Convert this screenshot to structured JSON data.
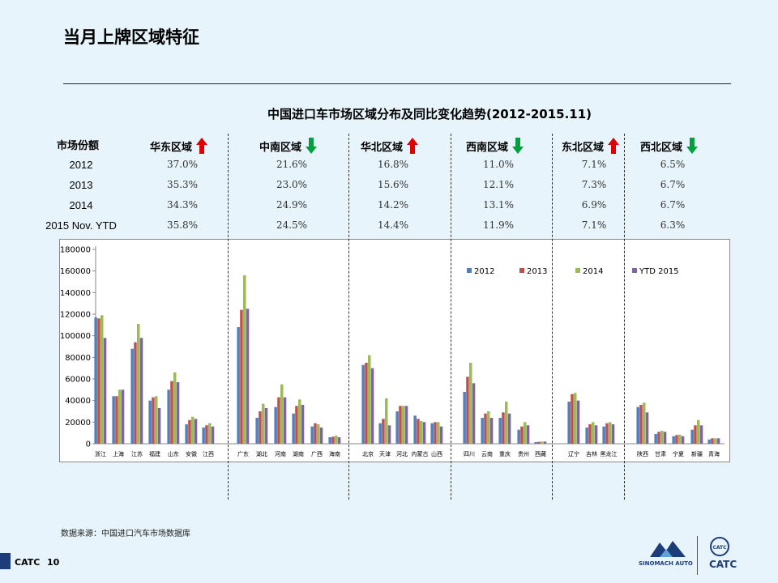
{
  "page": {
    "title": "当月上牌区域特征",
    "source_note": "数据来源：中国进口汽车市场数据库",
    "footer_brand": "CATC",
    "footer_page": "10",
    "logo_left_text": "SINOMACH AUTO",
    "logo_right_text": "CATC",
    "logo_right_circle_text": "CATC"
  },
  "table": {
    "header_label": "市场份额",
    "regions": [
      {
        "name": "华东区域",
        "trend": "up"
      },
      {
        "name": "中南区域",
        "trend": "down"
      },
      {
        "name": "华北区域",
        "trend": "up"
      },
      {
        "name": "西南区域",
        "trend": "down"
      },
      {
        "name": "东北区域",
        "trend": "up"
      },
      {
        "name": "西北区域",
        "trend": "down"
      }
    ],
    "rows": [
      {
        "label": "2012",
        "values": [
          "37.0%",
          "21.6%",
          "16.8%",
          "11.0%",
          "7.1%",
          "6.5%"
        ]
      },
      {
        "label": "2013",
        "values": [
          "35.3%",
          "23.0%",
          "15.6%",
          "12.1%",
          "7.3%",
          "6.7%"
        ]
      },
      {
        "label": "2014",
        "values": [
          "34.3%",
          "24.9%",
          "14.2%",
          "13.1%",
          "6.9%",
          "6.7%"
        ]
      },
      {
        "label": "2015 Nov. YTD",
        "values": [
          "35.8%",
          "24.5%",
          "14.4%",
          "11.9%",
          "7.1%",
          "6.3%"
        ]
      }
    ]
  },
  "colors": {
    "s2012": "#4e81bd",
    "s2013": "#c0504d",
    "s2014": "#9bbb59",
    "s2015": "#8064a2",
    "up_arrow": "#e00000",
    "down_arrow": "#00a040"
  },
  "chart_data": {
    "type": "bar",
    "title": "中国进口车市场区域分布及同比变化趋势(2012-2015.11)",
    "ylim": [
      0,
      180000
    ],
    "yticks": [
      0,
      20000,
      40000,
      60000,
      80000,
      100000,
      120000,
      140000,
      160000,
      180000
    ],
    "legend_position": "top-right",
    "groups": [
      {
        "region": "华东区域",
        "categories": [
          "浙江",
          "上海",
          "江苏",
          "福建",
          "山东",
          "安徽",
          "江西"
        ]
      },
      {
        "region": "中南区域",
        "categories": [
          "广东",
          "湖北",
          "河南",
          "湖南",
          "广西",
          "海南"
        ]
      },
      {
        "region": "华北区域",
        "categories": [
          "北京",
          "天津",
          "河北",
          "内蒙古",
          "山西"
        ]
      },
      {
        "region": "西南区域",
        "categories": [
          "四川",
          "云南",
          "重庆",
          "贵州",
          "西藏"
        ]
      },
      {
        "region": "东北区域",
        "categories": [
          "辽宁",
          "吉林",
          "黑龙江"
        ]
      },
      {
        "region": "西北区域",
        "categories": [
          "陕西",
          "甘肃",
          "宁夏",
          "新疆",
          "青海"
        ]
      }
    ],
    "series": [
      {
        "name": "2012",
        "values": [
          117000,
          44000,
          88000,
          40000,
          50000,
          18000,
          15000,
          108000,
          24000,
          34000,
          28000,
          16000,
          6000,
          73000,
          19000,
          30000,
          26000,
          19000,
          48000,
          24000,
          24000,
          13000,
          1500,
          39000,
          15000,
          16000,
          34000,
          9000,
          7000,
          13000,
          4000
        ]
      },
      {
        "name": "2013",
        "values": [
          116000,
          44000,
          94000,
          43000,
          58000,
          22000,
          17000,
          124000,
          30000,
          43000,
          35000,
          19000,
          6500,
          75000,
          23000,
          35000,
          23000,
          20000,
          62000,
          28000,
          29000,
          16000,
          1800,
          46000,
          18000,
          19000,
          36000,
          11000,
          8000,
          17000,
          5000
        ]
      },
      {
        "name": "2014",
        "values": [
          119000,
          50000,
          111000,
          44000,
          66000,
          25000,
          19000,
          156000,
          37000,
          55000,
          41000,
          18000,
          7500,
          82000,
          42000,
          35000,
          21000,
          20000,
          75000,
          30000,
          39000,
          20000,
          2000,
          47000,
          20000,
          20000,
          38000,
          12000,
          8500,
          22000,
          5000
        ]
      },
      {
        "name": "YTD 2015",
        "values": [
          98000,
          50000,
          98000,
          33000,
          57000,
          23000,
          16000,
          125000,
          33000,
          43000,
          36000,
          15000,
          6000,
          70000,
          17000,
          35000,
          20000,
          16000,
          56000,
          24000,
          28000,
          17000,
          2000,
          40000,
          17000,
          18000,
          29000,
          11000,
          7000,
          17000,
          5000
        ]
      }
    ]
  }
}
